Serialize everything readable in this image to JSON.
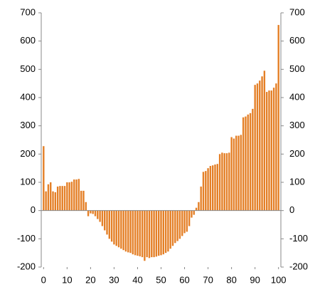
{
  "chart_data": {
    "type": "bar",
    "x": [
      0,
      1,
      2,
      3,
      4,
      5,
      6,
      7,
      8,
      9,
      10,
      11,
      12,
      13,
      14,
      15,
      16,
      17,
      18,
      19,
      20,
      21,
      22,
      23,
      24,
      25,
      26,
      27,
      28,
      29,
      30,
      31,
      32,
      33,
      34,
      35,
      36,
      37,
      38,
      39,
      40,
      41,
      42,
      43,
      44,
      45,
      46,
      47,
      48,
      49,
      50,
      51,
      52,
      53,
      54,
      55,
      56,
      57,
      58,
      59,
      60,
      61,
      62,
      63,
      64,
      65,
      66,
      67,
      68,
      69,
      70,
      71,
      72,
      73,
      74,
      75,
      76,
      77,
      78,
      79,
      80,
      81,
      82,
      83,
      84,
      85,
      86,
      87,
      88,
      89,
      90,
      91,
      92,
      93,
      94,
      95,
      96,
      97,
      98,
      99,
      100
    ],
    "values": [
      228,
      68,
      93,
      100,
      68,
      65,
      85,
      87,
      87,
      87,
      100,
      100,
      102,
      110,
      110,
      112,
      70,
      70,
      30,
      -20,
      -10,
      -12,
      -20,
      -30,
      -40,
      -55,
      -70,
      -85,
      -100,
      -110,
      -120,
      -125,
      -130,
      -135,
      -140,
      -145,
      -148,
      -150,
      -155,
      -158,
      -160,
      -162,
      -165,
      -178,
      -165,
      -168,
      -165,
      -165,
      -163,
      -160,
      -158,
      -155,
      -150,
      -145,
      -135,
      -125,
      -115,
      -108,
      -100,
      -90,
      -80,
      -75,
      -55,
      -25,
      -15,
      10,
      30,
      85,
      137,
      140,
      150,
      158,
      160,
      163,
      165,
      200,
      205,
      203,
      203,
      205,
      260,
      255,
      265,
      265,
      268,
      330,
      333,
      340,
      345,
      360,
      445,
      450,
      460,
      475,
      495,
      420,
      425,
      425,
      435,
      450,
      657
    ],
    "color": "#e47f26",
    "xlim": [
      -1,
      101
    ],
    "xticks": [
      0,
      10,
      20,
      30,
      40,
      50,
      60,
      70,
      80,
      90,
      100
    ],
    "ylim": [
      -200,
      700
    ],
    "yticks": [
      -200,
      -100,
      0,
      100,
      200,
      300,
      400,
      500,
      600,
      700
    ],
    "y2lim": [
      -200,
      700
    ],
    "y2ticks": [
      -200,
      -100,
      0,
      100,
      200,
      300,
      400,
      500,
      600,
      700
    ]
  }
}
